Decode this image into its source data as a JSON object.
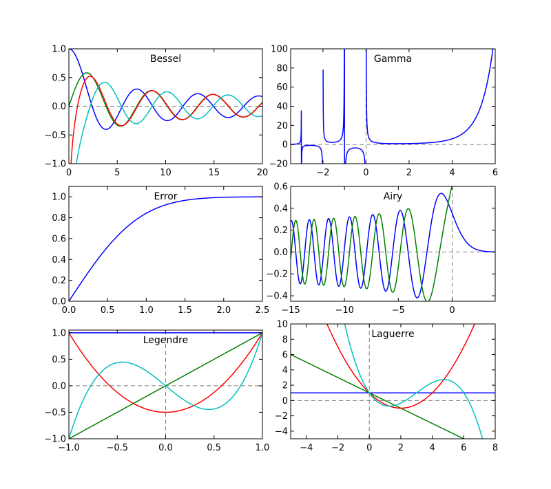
{
  "colors": {
    "b": "#0000ff",
    "g": "#008000",
    "r": "#ff0000",
    "c": "#00bfbf",
    "ref": "#7f7f7f"
  },
  "chart_data": [
    {
      "id": "bessel",
      "type": "line",
      "title": "Bessel",
      "xlim": [
        0,
        20
      ],
      "ylim": [
        -1,
        1
      ],
      "xticks": [
        0,
        5,
        10,
        15,
        20
      ],
      "xtick_labels": [
        "0",
        "5",
        "10",
        "15",
        "20"
      ],
      "yticks": [
        -1,
        -0.5,
        0,
        0.5,
        1
      ],
      "ytick_labels": [
        "−1.0",
        "−0.5",
        "0.0",
        "0.5",
        "1.0"
      ],
      "ref_h": 0,
      "ref_v": null,
      "grid": false,
      "series": [
        {
          "color": "b",
          "func": "besselJ0"
        },
        {
          "color": "g",
          "func": "besselJ1"
        },
        {
          "color": "r",
          "func": "besselY0"
        },
        {
          "color": "c",
          "func": "besselY1"
        }
      ]
    },
    {
      "id": "gamma",
      "type": "line",
      "title": "Gamma",
      "xlim": [
        -3.5,
        6
      ],
      "ylim": [
        -20,
        100
      ],
      "xticks": [
        -2,
        0,
        2,
        4,
        6
      ],
      "xtick_labels": [
        "−2",
        "0",
        "2",
        "4",
        "6"
      ],
      "yticks": [
        -20,
        0,
        20,
        40,
        60,
        80,
        100
      ],
      "ytick_labels": [
        "−20",
        "0",
        "20",
        "40",
        "60",
        "80",
        "100"
      ],
      "ref_h": 0,
      "ref_v": 0,
      "grid": false,
      "series": [
        {
          "color": "b",
          "func": "gamma"
        }
      ]
    },
    {
      "id": "error",
      "type": "line",
      "title": "Error",
      "xlim": [
        0,
        2.5
      ],
      "ylim": [
        0,
        1.1
      ],
      "xticks": [
        0,
        0.5,
        1,
        1.5,
        2,
        2.5
      ],
      "xtick_labels": [
        "0.0",
        "0.5",
        "1.0",
        "1.5",
        "2.0",
        "2.5"
      ],
      "yticks": [
        0,
        0.2,
        0.4,
        0.6,
        0.8,
        1
      ],
      "ytick_labels": [
        "0.0",
        "0.2",
        "0.4",
        "0.6",
        "0.8",
        "1.0"
      ],
      "ref_h": null,
      "ref_v": null,
      "grid": false,
      "series": [
        {
          "color": "b",
          "func": "erf"
        }
      ]
    },
    {
      "id": "airy",
      "type": "line",
      "title": "Airy",
      "xlim": [
        -15,
        4
      ],
      "ylim": [
        -0.45,
        0.6
      ],
      "xticks": [
        -15,
        -10,
        -5,
        0
      ],
      "xtick_labels": [
        "−15",
        "−10",
        "−5",
        "0"
      ],
      "yticks": [
        -0.4,
        -0.2,
        0,
        0.2,
        0.4,
        0.6
      ],
      "ytick_labels": [
        "−0.4",
        "−0.2",
        "0.0",
        "0.2",
        "0.4",
        "0.6"
      ],
      "ref_h": 0,
      "ref_v": 0,
      "grid": false,
      "series": [
        {
          "color": "b",
          "func": "airyAi"
        },
        {
          "color": "g",
          "func": "airyBi"
        }
      ]
    },
    {
      "id": "legendre",
      "type": "line",
      "title": "Legendre",
      "xlim": [
        -1,
        1
      ],
      "ylim": [
        -1,
        1.05
      ],
      "xticks": [
        -1,
        -0.5,
        0,
        0.5,
        1
      ],
      "xtick_labels": [
        "−1.0",
        "−0.5",
        "0.0",
        "0.5",
        "1.0"
      ],
      "yticks": [
        -1,
        -0.5,
        0,
        0.5,
        1
      ],
      "ytick_labels": [
        "−1.0",
        "−0.5",
        "0.0",
        "0.5",
        "1.0"
      ],
      "ref_h": 0,
      "ref_v": 0,
      "grid": false,
      "series": [
        {
          "color": "b",
          "func": "legendreP0"
        },
        {
          "color": "g",
          "func": "legendreP1"
        },
        {
          "color": "r",
          "func": "legendreP2"
        },
        {
          "color": "c",
          "func": "legendreP3"
        }
      ]
    },
    {
      "id": "laguerre",
      "type": "line",
      "title": "Laguerre",
      "xlim": [
        -5,
        8
      ],
      "ylim": [
        -5,
        10
      ],
      "xticks": [
        -4,
        -2,
        0,
        2,
        4,
        6,
        8
      ],
      "xtick_labels": [
        "−4",
        "−2",
        "0",
        "2",
        "4",
        "6",
        "8"
      ],
      "yticks": [
        -4,
        -2,
        0,
        2,
        4,
        6,
        8,
        10
      ],
      "ytick_labels": [
        "−4",
        "−2",
        "0",
        "2",
        "4",
        "6",
        "8",
        "10"
      ],
      "ref_h": 0,
      "ref_v": 0,
      "grid": false,
      "series": [
        {
          "color": "b",
          "func": "laguerreL0"
        },
        {
          "color": "g",
          "func": "laguerreL1"
        },
        {
          "color": "r",
          "func": "laguerreL2"
        },
        {
          "color": "c",
          "func": "laguerreL3"
        }
      ]
    }
  ]
}
